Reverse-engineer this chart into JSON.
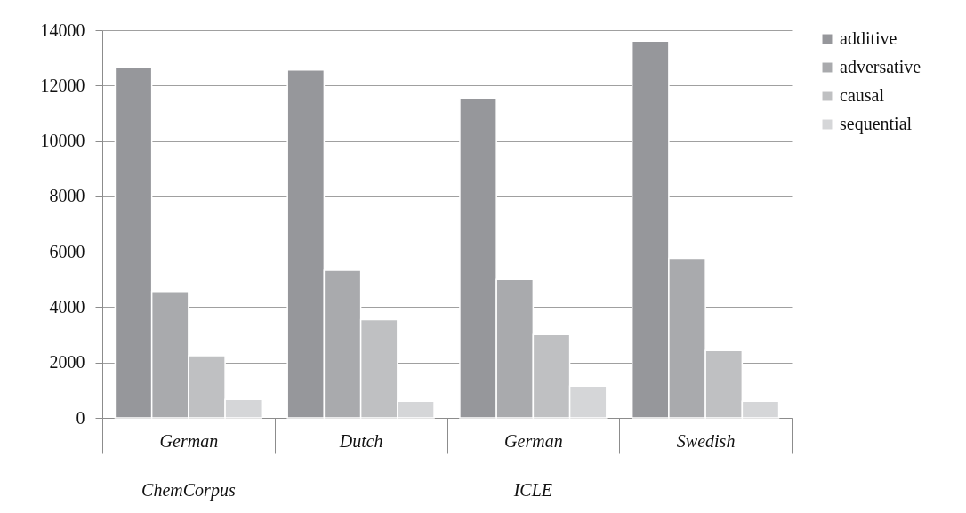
{
  "chart_data": {
    "type": "bar",
    "categories": [
      "German",
      "Dutch",
      "German",
      "Swedish"
    ],
    "series": [
      {
        "name": "additive",
        "color": "#96979b",
        "values": [
          12650,
          12560,
          11550,
          13610
        ]
      },
      {
        "name": "adversative",
        "color": "#a9aaad",
        "values": [
          4570,
          5330,
          5000,
          5760
        ]
      },
      {
        "name": "causal",
        "color": "#bfc0c2",
        "values": [
          2250,
          3550,
          3010,
          2430
        ]
      },
      {
        "name": "sequential",
        "color": "#d5d6d8",
        "values": [
          670,
          600,
          1150,
          600
        ]
      }
    ],
    "annotations": [
      "ChemCorpus",
      "ICLE"
    ],
    "ylim": [
      0,
      14000
    ],
    "yticks": [
      0,
      2000,
      4000,
      6000,
      8000,
      10000,
      12000,
      14000
    ],
    "grid": "y",
    "legend": "right"
  }
}
